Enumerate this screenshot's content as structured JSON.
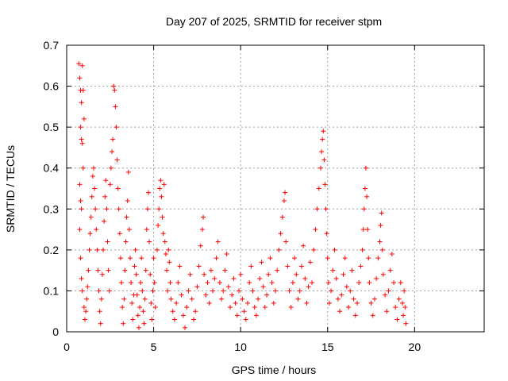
{
  "chart_data": {
    "type": "scatter",
    "title": "Day 207 of 2025, SRMTID for receiver stpm",
    "xlabel": "GPS time / hours",
    "ylabel": "SRMTID / TECUs",
    "xlim": [
      0,
      24
    ],
    "ylim": [
      0,
      0.7
    ],
    "xticks": [
      0,
      5,
      10,
      15,
      20
    ],
    "xtick_labels": [
      "0",
      "5",
      "10",
      "15",
      "20"
    ],
    "yticks": [
      0,
      0.1,
      0.2,
      0.3,
      0.4,
      0.5,
      0.6,
      0.7
    ],
    "ytick_labels": [
      "0",
      "0.1",
      "0.2",
      "0.3",
      "0.4",
      "0.5",
      "0.6",
      "0.7"
    ],
    "grid": true,
    "marker": "+",
    "series": [
      {
        "name": "stpm",
        "color": "#ff0000",
        "points": [
          [
            0.7,
            0.655
          ],
          [
            0.75,
            0.62
          ],
          [
            0.8,
            0.59
          ],
          [
            0.85,
            0.56
          ],
          [
            0.8,
            0.5
          ],
          [
            0.85,
            0.47
          ],
          [
            0.9,
            0.46
          ],
          [
            0.9,
            0.65
          ],
          [
            0.95,
            0.59
          ],
          [
            1.0,
            0.52
          ],
          [
            0.95,
            0.4
          ],
          [
            0.75,
            0.36
          ],
          [
            0.8,
            0.32
          ],
          [
            0.85,
            0.3
          ],
          [
            0.75,
            0.25
          ],
          [
            0.8,
            0.18
          ],
          [
            0.85,
            0.13
          ],
          [
            0.9,
            0.1
          ],
          [
            1.0,
            0.06
          ],
          [
            1.05,
            0.03
          ],
          [
            1.1,
            0.05
          ],
          [
            1.15,
            0.08
          ],
          [
            1.2,
            0.11
          ],
          [
            1.25,
            0.15
          ],
          [
            1.3,
            0.2
          ],
          [
            1.35,
            0.24
          ],
          [
            1.4,
            0.28
          ],
          [
            1.45,
            0.33
          ],
          [
            1.5,
            0.38
          ],
          [
            1.55,
            0.4
          ],
          [
            1.6,
            0.35
          ],
          [
            1.65,
            0.3
          ],
          [
            1.7,
            0.25
          ],
          [
            1.75,
            0.2
          ],
          [
            1.8,
            0.15
          ],
          [
            1.85,
            0.1
          ],
          [
            1.9,
            0.05
          ],
          [
            1.95,
            0.02
          ],
          [
            2.0,
            0.08
          ],
          [
            2.05,
            0.14
          ],
          [
            2.1,
            0.2
          ],
          [
            2.15,
            0.27
          ],
          [
            2.2,
            0.33
          ],
          [
            2.25,
            0.37
          ],
          [
            2.3,
            0.3
          ],
          [
            2.35,
            0.22
          ],
          [
            2.4,
            0.15
          ],
          [
            2.45,
            0.1
          ],
          [
            2.5,
            0.36
          ],
          [
            2.55,
            0.4
          ],
          [
            2.6,
            0.44
          ],
          [
            2.65,
            0.47
          ],
          [
            2.7,
            0.6
          ],
          [
            2.75,
            0.59
          ],
          [
            2.8,
            0.55
          ],
          [
            2.85,
            0.5
          ],
          [
            2.9,
            0.42
          ],
          [
            2.95,
            0.35
          ],
          [
            3.0,
            0.3
          ],
          [
            3.05,
            0.24
          ],
          [
            3.1,
            0.18
          ],
          [
            3.15,
            0.12
          ],
          [
            3.2,
            0.06
          ],
          [
            3.25,
            0.02
          ],
          [
            3.3,
            0.08
          ],
          [
            3.35,
            0.15
          ],
          [
            3.4,
            0.22
          ],
          [
            3.45,
            0.28
          ],
          [
            3.5,
            0.32
          ],
          [
            3.55,
            0.39
          ],
          [
            3.6,
            0.25
          ],
          [
            3.65,
            0.18
          ],
          [
            3.7,
            0.12
          ],
          [
            3.75,
            0.07
          ],
          [
            3.8,
            0.03
          ],
          [
            3.85,
            0.09
          ],
          [
            3.9,
            0.16
          ],
          [
            3.95,
            0.2
          ],
          [
            4.0,
            0.14
          ],
          [
            4.05,
            0.09
          ],
          [
            4.1,
            0.04
          ],
          [
            4.15,
            0.01
          ],
          [
            4.2,
            0.06
          ],
          [
            4.25,
            0.12
          ],
          [
            4.3,
            0.18
          ],
          [
            4.35,
            0.1
          ],
          [
            4.4,
            0.05
          ],
          [
            4.45,
            0.02
          ],
          [
            4.5,
            0.08
          ],
          [
            4.55,
            0.15
          ],
          [
            4.6,
            0.25
          ],
          [
            4.65,
            0.3
          ],
          [
            4.7,
            0.34
          ],
          [
            4.75,
            0.22
          ],
          [
            4.8,
            0.14
          ],
          [
            4.85,
            0.07
          ],
          [
            4.9,
            0.03
          ],
          [
            4.95,
            0.1
          ],
          [
            5.0,
            0.18
          ],
          [
            5.05,
            0.12
          ],
          [
            5.1,
            0.06
          ],
          [
            5.2,
            0.2
          ],
          [
            5.25,
            0.26
          ],
          [
            5.3,
            0.3
          ],
          [
            5.35,
            0.35
          ],
          [
            5.4,
            0.37
          ],
          [
            5.45,
            0.33
          ],
          [
            5.5,
            0.28
          ],
          [
            5.55,
            0.24
          ],
          [
            5.6,
            0.36
          ],
          [
            5.65,
            0.22
          ],
          [
            5.7,
            0.19
          ],
          [
            5.75,
            0.15
          ],
          [
            5.8,
            0.1
          ],
          [
            5.85,
            0.2
          ],
          [
            5.9,
            0.17
          ],
          [
            5.95,
            0.12
          ],
          [
            6.0,
            0.08
          ],
          [
            6.1,
            0.05
          ],
          [
            6.2,
            0.03
          ],
          [
            6.3,
            0.07
          ],
          [
            6.4,
            0.12
          ],
          [
            6.5,
            0.16
          ],
          [
            6.6,
            0.09
          ],
          [
            6.7,
            0.04
          ],
          [
            6.8,
            0.01
          ],
          [
            6.9,
            0.06
          ],
          [
            7.0,
            0.1
          ],
          [
            7.1,
            0.14
          ],
          [
            7.2,
            0.08
          ],
          [
            7.3,
            0.03
          ],
          [
            7.4,
            0.05
          ],
          [
            7.5,
            0.11
          ],
          [
            7.6,
            0.16
          ],
          [
            7.7,
            0.21
          ],
          [
            7.8,
            0.25
          ],
          [
            7.85,
            0.28
          ],
          [
            7.9,
            0.14
          ],
          [
            8.0,
            0.09
          ],
          [
            8.1,
            0.12
          ],
          [
            8.2,
            0.07
          ],
          [
            8.3,
            0.15
          ],
          [
            8.4,
            0.1
          ],
          [
            8.5,
            0.13
          ],
          [
            8.6,
            0.18
          ],
          [
            8.7,
            0.22
          ],
          [
            8.8,
            0.12
          ],
          [
            8.9,
            0.08
          ],
          [
            9.0,
            0.1
          ],
          [
            9.1,
            0.15
          ],
          [
            9.2,
            0.19
          ],
          [
            9.3,
            0.11
          ],
          [
            9.4,
            0.06
          ],
          [
            9.5,
            0.09
          ],
          [
            9.6,
            0.13
          ],
          [
            9.7,
            0.07
          ],
          [
            9.8,
            0.04
          ],
          [
            9.9,
            0.1
          ],
          [
            10.0,
            0.14
          ],
          [
            10.1,
            0.08
          ],
          [
            10.2,
            0.05
          ],
          [
            10.3,
            0.03
          ],
          [
            10.4,
            0.07
          ],
          [
            10.5,
            0.12
          ],
          [
            10.6,
            0.16
          ],
          [
            10.7,
            0.1
          ],
          [
            10.8,
            0.06
          ],
          [
            10.9,
            0.04
          ],
          [
            11.0,
            0.08
          ],
          [
            11.1,
            0.13
          ],
          [
            11.2,
            0.17
          ],
          [
            11.3,
            0.11
          ],
          [
            11.4,
            0.06
          ],
          [
            11.5,
            0.09
          ],
          [
            11.6,
            0.14
          ],
          [
            11.7,
            0.18
          ],
          [
            11.8,
            0.12
          ],
          [
            11.9,
            0.07
          ],
          [
            12.0,
            0.1
          ],
          [
            12.1,
            0.15
          ],
          [
            12.2,
            0.2
          ],
          [
            12.3,
            0.24
          ],
          [
            12.4,
            0.28
          ],
          [
            12.5,
            0.32
          ],
          [
            12.55,
            0.34
          ],
          [
            12.6,
            0.22
          ],
          [
            12.7,
            0.16
          ],
          [
            12.8,
            0.1
          ],
          [
            12.9,
            0.06
          ],
          [
            13.0,
            0.12
          ],
          [
            13.1,
            0.18
          ],
          [
            13.2,
            0.14
          ],
          [
            13.3,
            0.08
          ],
          [
            13.4,
            0.1
          ],
          [
            13.5,
            0.16
          ],
          [
            13.6,
            0.21
          ],
          [
            13.7,
            0.13
          ],
          [
            13.8,
            0.07
          ],
          [
            13.9,
            0.11
          ],
          [
            14.0,
            0.17
          ],
          [
            14.1,
            0.12
          ],
          [
            14.2,
            0.2
          ],
          [
            14.3,
            0.25
          ],
          [
            14.4,
            0.3
          ],
          [
            14.5,
            0.35
          ],
          [
            14.6,
            0.4
          ],
          [
            14.65,
            0.44
          ],
          [
            14.7,
            0.47
          ],
          [
            14.75,
            0.49
          ],
          [
            14.8,
            0.42
          ],
          [
            14.85,
            0.36
          ],
          [
            14.9,
            0.3
          ],
          [
            14.95,
            0.24
          ],
          [
            15.0,
            0.18
          ],
          [
            15.05,
            0.12
          ],
          [
            15.1,
            0.07
          ],
          [
            15.2,
            0.1
          ],
          [
            15.3,
            0.15
          ],
          [
            15.4,
            0.2
          ],
          [
            15.5,
            0.13
          ],
          [
            15.6,
            0.08
          ],
          [
            15.7,
            0.05
          ],
          [
            15.8,
            0.09
          ],
          [
            15.9,
            0.14
          ],
          [
            16.0,
            0.18
          ],
          [
            16.1,
            0.11
          ],
          [
            16.2,
            0.06
          ],
          [
            16.3,
            0.1
          ],
          [
            16.4,
            0.15
          ],
          [
            16.5,
            0.08
          ],
          [
            16.6,
            0.04
          ],
          [
            16.7,
            0.07
          ],
          [
            16.8,
            0.12
          ],
          [
            16.9,
            0.16
          ],
          [
            17.0,
            0.2
          ],
          [
            17.05,
            0.25
          ],
          [
            17.1,
            0.3
          ],
          [
            17.15,
            0.35
          ],
          [
            17.2,
            0.4
          ],
          [
            17.25,
            0.33
          ],
          [
            17.3,
            0.25
          ],
          [
            17.35,
            0.18
          ],
          [
            17.4,
            0.12
          ],
          [
            17.5,
            0.07
          ],
          [
            17.6,
            0.04
          ],
          [
            17.7,
            0.08
          ],
          [
            17.8,
            0.13
          ],
          [
            17.9,
            0.18
          ],
          [
            18.0,
            0.22
          ],
          [
            18.05,
            0.26
          ],
          [
            18.1,
            0.29
          ],
          [
            18.15,
            0.2
          ],
          [
            18.2,
            0.14
          ],
          [
            18.3,
            0.09
          ],
          [
            18.4,
            0.05
          ],
          [
            18.5,
            0.1
          ],
          [
            18.6,
            0.15
          ],
          [
            18.7,
            0.19
          ],
          [
            18.8,
            0.12
          ],
          [
            18.9,
            0.06
          ],
          [
            19.0,
            0.03
          ],
          [
            19.1,
            0.08
          ],
          [
            19.2,
            0.12
          ],
          [
            19.3,
            0.07
          ],
          [
            19.35,
            0.04
          ],
          [
            19.4,
            0.1
          ],
          [
            19.45,
            0.06
          ],
          [
            19.5,
            0.02
          ]
        ]
      }
    ]
  }
}
